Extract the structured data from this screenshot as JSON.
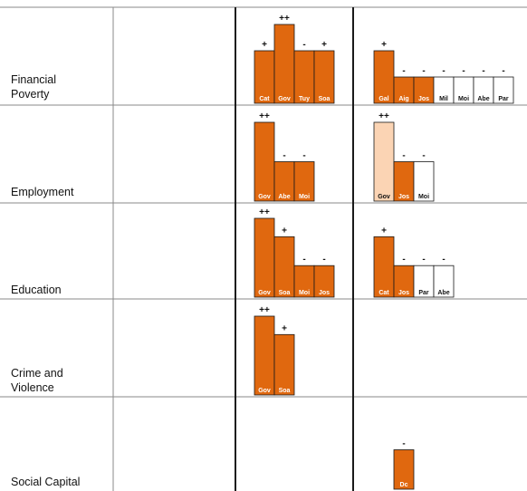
{
  "colors": {
    "strong": "#e0680f",
    "weak": "#fbd4b4",
    "none": "#ffffff",
    "border": "#1a1a1a",
    "grid": "#8a8a8a"
  },
  "chart_data": {
    "type": "bar",
    "rows": [
      {
        "label": "Financial\nPoverty",
        "groups": [
          [],
          [
            {
              "code": "Cat",
              "value": 2,
              "sign": "+",
              "fill": "strong"
            },
            {
              "code": "Gov",
              "value": 3,
              "sign": "++",
              "fill": "strong"
            },
            {
              "code": "Tuy",
              "value": 2,
              "sign": "-",
              "fill": "strong"
            },
            {
              "code": "Soa",
              "value": 2,
              "sign": "+",
              "fill": "strong"
            }
          ],
          [
            {
              "code": "Gal",
              "value": 2,
              "sign": "+",
              "fill": "strong"
            },
            {
              "code": "Aig",
              "value": 1,
              "sign": "-",
              "fill": "strong"
            },
            {
              "code": "Jos",
              "value": 1,
              "sign": "-",
              "fill": "strong"
            },
            {
              "code": "Mil",
              "value": 1,
              "sign": "-",
              "fill": "none"
            },
            {
              "code": "Moi",
              "value": 1,
              "sign": "-",
              "fill": "none"
            },
            {
              "code": "Abe",
              "value": 1,
              "sign": "-",
              "fill": "none"
            },
            {
              "code": "Par",
              "value": 1,
              "sign": "-",
              "fill": "none"
            }
          ]
        ]
      },
      {
        "label": "Employment",
        "groups": [
          [],
          [
            {
              "code": "Gov",
              "value": 3,
              "sign": "++",
              "fill": "strong"
            },
            {
              "code": "Abe",
              "value": 1.5,
              "sign": "-",
              "fill": "strong"
            },
            {
              "code": "Moi",
              "value": 1.5,
              "sign": "-",
              "fill": "strong"
            }
          ],
          [
            {
              "code": "Gov",
              "value": 3,
              "sign": "++",
              "fill": "weak"
            },
            {
              "code": "Jos",
              "value": 1.5,
              "sign": "-",
              "fill": "strong"
            },
            {
              "code": "Moi",
              "value": 1.5,
              "sign": "-",
              "fill": "none"
            }
          ]
        ]
      },
      {
        "label": "Education",
        "groups": [
          [],
          [
            {
              "code": "Gov",
              "value": 3,
              "sign": "++",
              "fill": "strong"
            },
            {
              "code": "Soa",
              "value": 2.3,
              "sign": "+",
              "fill": "strong"
            },
            {
              "code": "Moi",
              "value": 1.2,
              "sign": "-",
              "fill": "strong"
            },
            {
              "code": "Jos",
              "value": 1.2,
              "sign": "-",
              "fill": "strong"
            }
          ],
          [
            {
              "code": "Cat",
              "value": 2.3,
              "sign": "+",
              "fill": "strong"
            },
            {
              "code": "Jos",
              "value": 1.2,
              "sign": "-",
              "fill": "strong"
            },
            {
              "code": "Par",
              "value": 1.2,
              "sign": "-",
              "fill": "none"
            },
            {
              "code": "Abe",
              "value": 1.2,
              "sign": "-",
              "fill": "none"
            }
          ]
        ]
      },
      {
        "label": "Crime and\nViolence",
        "groups": [
          [],
          [
            {
              "code": "Gov",
              "value": 3,
              "sign": "++",
              "fill": "strong"
            },
            {
              "code": "Soa",
              "value": 2.3,
              "sign": "+",
              "fill": "strong"
            }
          ],
          []
        ]
      },
      {
        "label": "Social Capital",
        "groups": [
          [],
          [],
          [
            {
              "code": "Dc",
              "value": 1.5,
              "sign": "-",
              "fill": "strong",
              "offset": 1
            }
          ]
        ]
      }
    ]
  }
}
